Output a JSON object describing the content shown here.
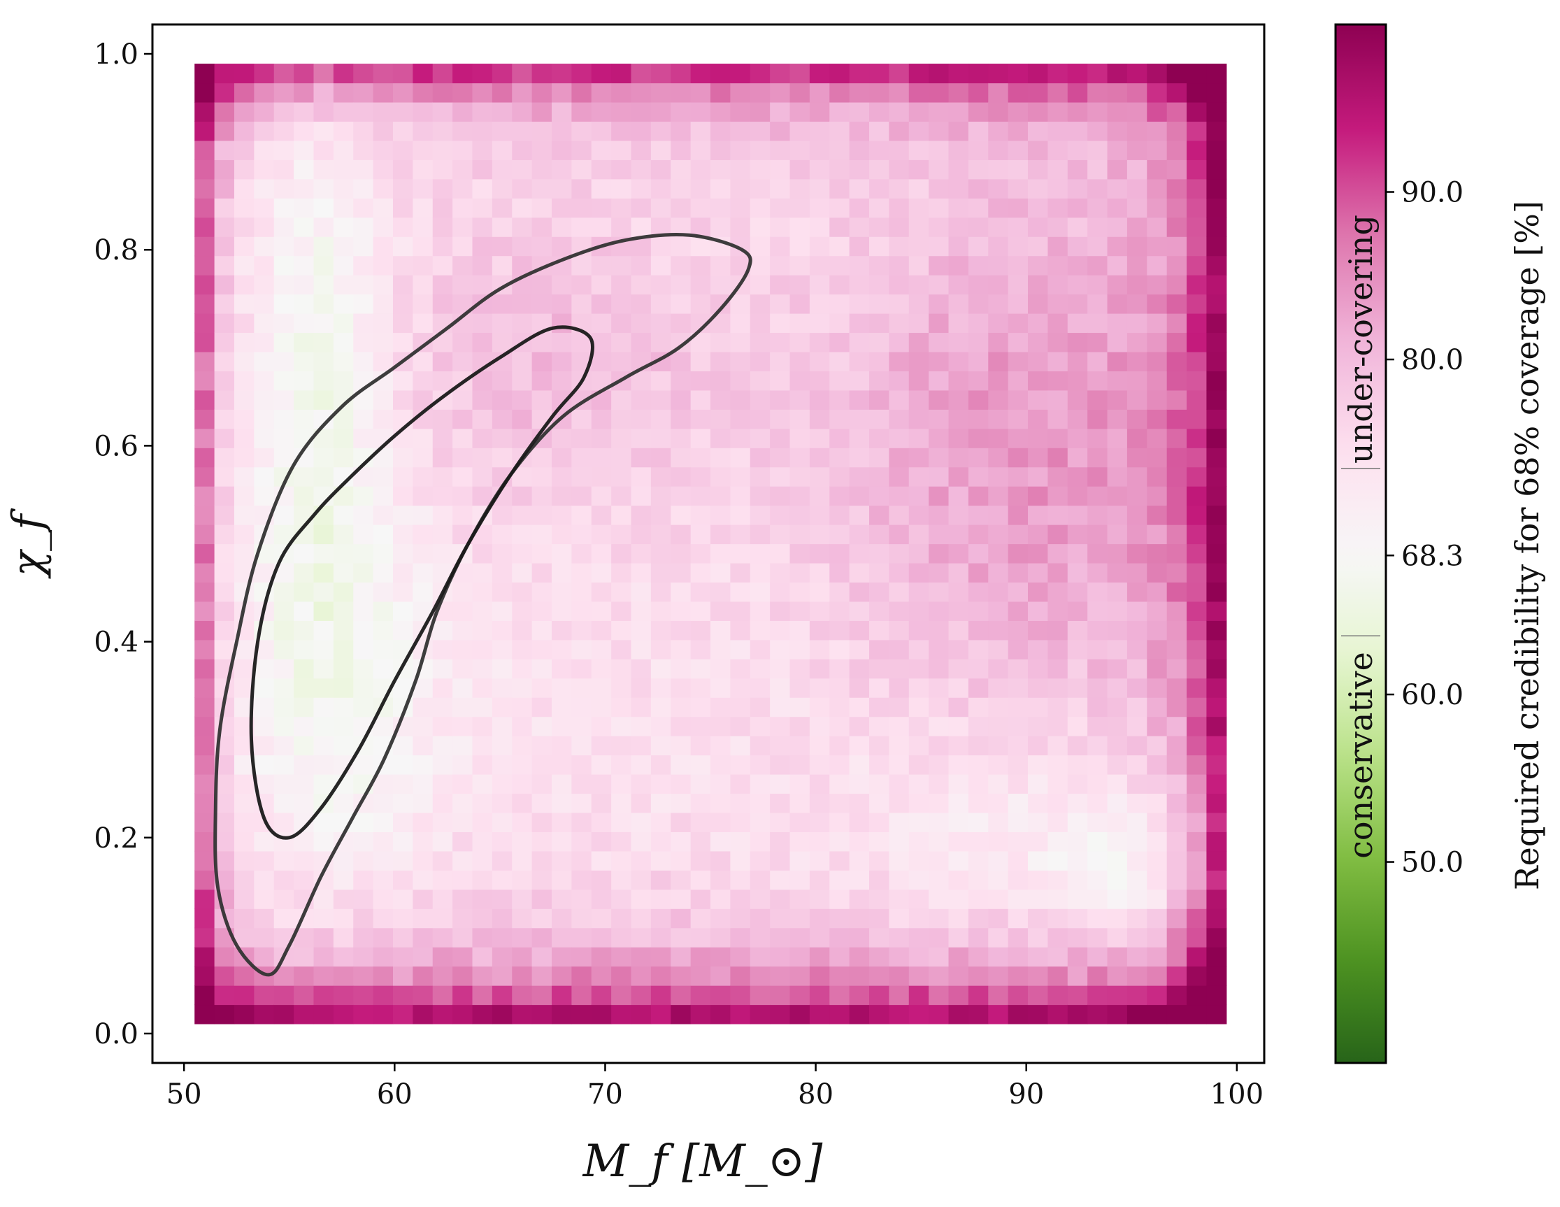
{
  "chart_data": {
    "type": "heatmap",
    "xlabel": "M_f [M_⊙]",
    "ylabel": "χ_f",
    "xlim": [
      48.5,
      101.3
    ],
    "ylim": [
      -0.03,
      1.03
    ],
    "x_ticks": [
      50,
      60,
      70,
      80,
      90,
      100
    ],
    "x_tick_labels": [
      "50",
      "60",
      "70",
      "80",
      "90",
      "100"
    ],
    "y_ticks": [
      0.0,
      0.2,
      0.4,
      0.6,
      0.8,
      1.0
    ],
    "y_tick_labels": [
      "0.0",
      "0.2",
      "0.4",
      "0.6",
      "0.8",
      "1.0"
    ],
    "grid": {
      "x_min": 50.5,
      "x_max": 99.5,
      "y_min": 0.01,
      "y_max": 0.99,
      "nx": 52,
      "ny": 50
    },
    "colorbar": {
      "label": "Required credibility for 68% coverage [%]",
      "range": [
        38.0,
        100.0
      ],
      "center": 68.3,
      "ticks": [
        50.0,
        60.0,
        68.3,
        80.0,
        90.0
      ],
      "tick_labels": [
        "50.0",
        "60.0",
        "68.3",
        "80.0",
        "90.0"
      ],
      "band_edges": [
        63.5,
        73.5
      ],
      "annotations": {
        "upper": "under-covering",
        "lower": "conservative"
      },
      "colors": {
        "low": "#276419",
        "center": "#f7f7f7",
        "high": "#8e0152"
      }
    },
    "contours": [
      {
        "name": "outer",
        "color": "#333333",
        "points": [
          [
            55.2,
            0.58
          ],
          [
            57.5,
            0.64
          ],
          [
            60,
            0.68
          ],
          [
            62.5,
            0.72
          ],
          [
            65,
            0.76
          ],
          [
            68,
            0.79
          ],
          [
            71,
            0.81
          ],
          [
            74,
            0.815
          ],
          [
            76.5,
            0.8
          ],
          [
            76.8,
            0.78
          ],
          [
            75.5,
            0.74
          ],
          [
            73.5,
            0.7
          ],
          [
            71,
            0.67
          ],
          [
            68,
            0.63
          ],
          [
            65.5,
            0.57
          ],
          [
            63.5,
            0.5
          ],
          [
            62,
            0.43
          ],
          [
            61,
            0.36
          ],
          [
            59.5,
            0.28
          ],
          [
            58,
            0.22
          ],
          [
            56.5,
            0.16
          ],
          [
            55,
            0.09
          ],
          [
            54,
            0.06
          ],
          [
            52.5,
            0.09
          ],
          [
            51.6,
            0.15
          ],
          [
            51.5,
            0.23
          ],
          [
            51.7,
            0.31
          ],
          [
            52.5,
            0.4
          ],
          [
            53.5,
            0.49
          ],
          [
            55.2,
            0.58
          ]
        ]
      },
      {
        "name": "inner",
        "color": "#1a1a1a",
        "points": [
          [
            54.5,
            0.48
          ],
          [
            56.2,
            0.53
          ],
          [
            58,
            0.57
          ],
          [
            60,
            0.61
          ],
          [
            62.3,
            0.65
          ],
          [
            65,
            0.69
          ],
          [
            67.5,
            0.72
          ],
          [
            69.3,
            0.71
          ],
          [
            69.0,
            0.67
          ],
          [
            67.5,
            0.63
          ],
          [
            65.5,
            0.57
          ],
          [
            63.5,
            0.5
          ],
          [
            61.8,
            0.43
          ],
          [
            60,
            0.36
          ],
          [
            58.3,
            0.29
          ],
          [
            56.5,
            0.23
          ],
          [
            55,
            0.2
          ],
          [
            53.8,
            0.22
          ],
          [
            53.2,
            0.3
          ],
          [
            53.5,
            0.4
          ],
          [
            54.5,
            0.48
          ]
        ]
      }
    ]
  }
}
